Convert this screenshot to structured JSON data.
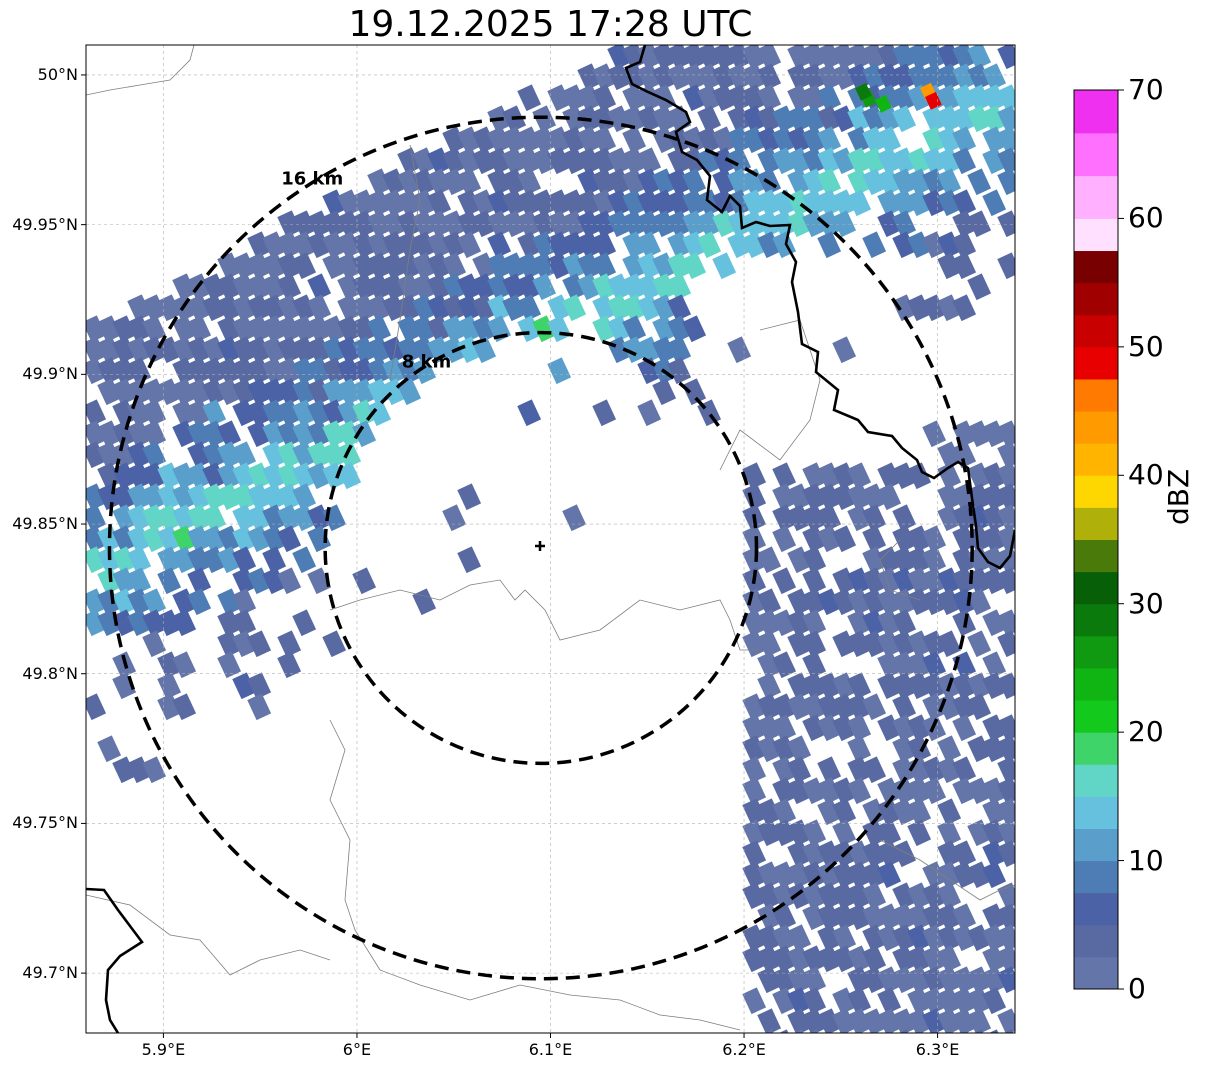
{
  "title": "19.12.2025 17:28 UTC",
  "map": {
    "lon_range": [
      5.86,
      6.34
    ],
    "lat_range": [
      49.68,
      50.01
    ],
    "grid": true,
    "radar_site": {
      "lon": 6.095,
      "lat": 49.842
    },
    "range_rings": [
      {
        "label": "8 km",
        "radius_km": 8
      },
      {
        "label": "16 km",
        "radius_km": 16
      }
    ],
    "lon_ticks": [
      {
        "value": 5.9,
        "label": "5.9°E"
      },
      {
        "value": 6.0,
        "label": "6°E"
      },
      {
        "value": 6.1,
        "label": "6.1°E"
      },
      {
        "value": 6.2,
        "label": "6.2°E"
      },
      {
        "value": 6.3,
        "label": "6.3°E"
      }
    ],
    "lat_ticks": [
      {
        "value": 50.0,
        "label": "50°N"
      },
      {
        "value": 49.95,
        "label": "49.95°N"
      },
      {
        "value": 49.9,
        "label": "49.9°N"
      },
      {
        "value": 49.85,
        "label": "49.85°N"
      },
      {
        "value": 49.8,
        "label": "49.8°N"
      },
      {
        "value": 49.75,
        "label": "49.75°N"
      },
      {
        "value": 49.7,
        "label": "49.7°N"
      }
    ]
  },
  "colorbar": {
    "label": "dBZ",
    "range": [
      0,
      70
    ],
    "ticks": [
      {
        "value": 0,
        "label": "0"
      },
      {
        "value": 10,
        "label": "10"
      },
      {
        "value": 20,
        "label": "20"
      },
      {
        "value": 30,
        "label": "30"
      },
      {
        "value": 40,
        "label": "40"
      },
      {
        "value": 50,
        "label": "50"
      },
      {
        "value": 60,
        "label": "60"
      },
      {
        "value": 70,
        "label": "70"
      }
    ],
    "colors": [
      "#6375a9",
      "#596aa3",
      "#4b62a6",
      "#4e7db5",
      "#5a9fcc",
      "#66c1df",
      "#62d6c6",
      "#3fd46a",
      "#13c91c",
      "#10b513",
      "#0f9a12",
      "#0b7a0c",
      "#075f08",
      "#4a7a0a",
      "#b0b00a",
      "#ffd700",
      "#ffb400",
      "#ff9a00",
      "#ff7a00",
      "#e80000",
      "#c80000",
      "#a00000",
      "#780000",
      "#ffe0ff",
      "#ffb0ff",
      "#ff70ff",
      "#f030f0"
    ]
  }
}
